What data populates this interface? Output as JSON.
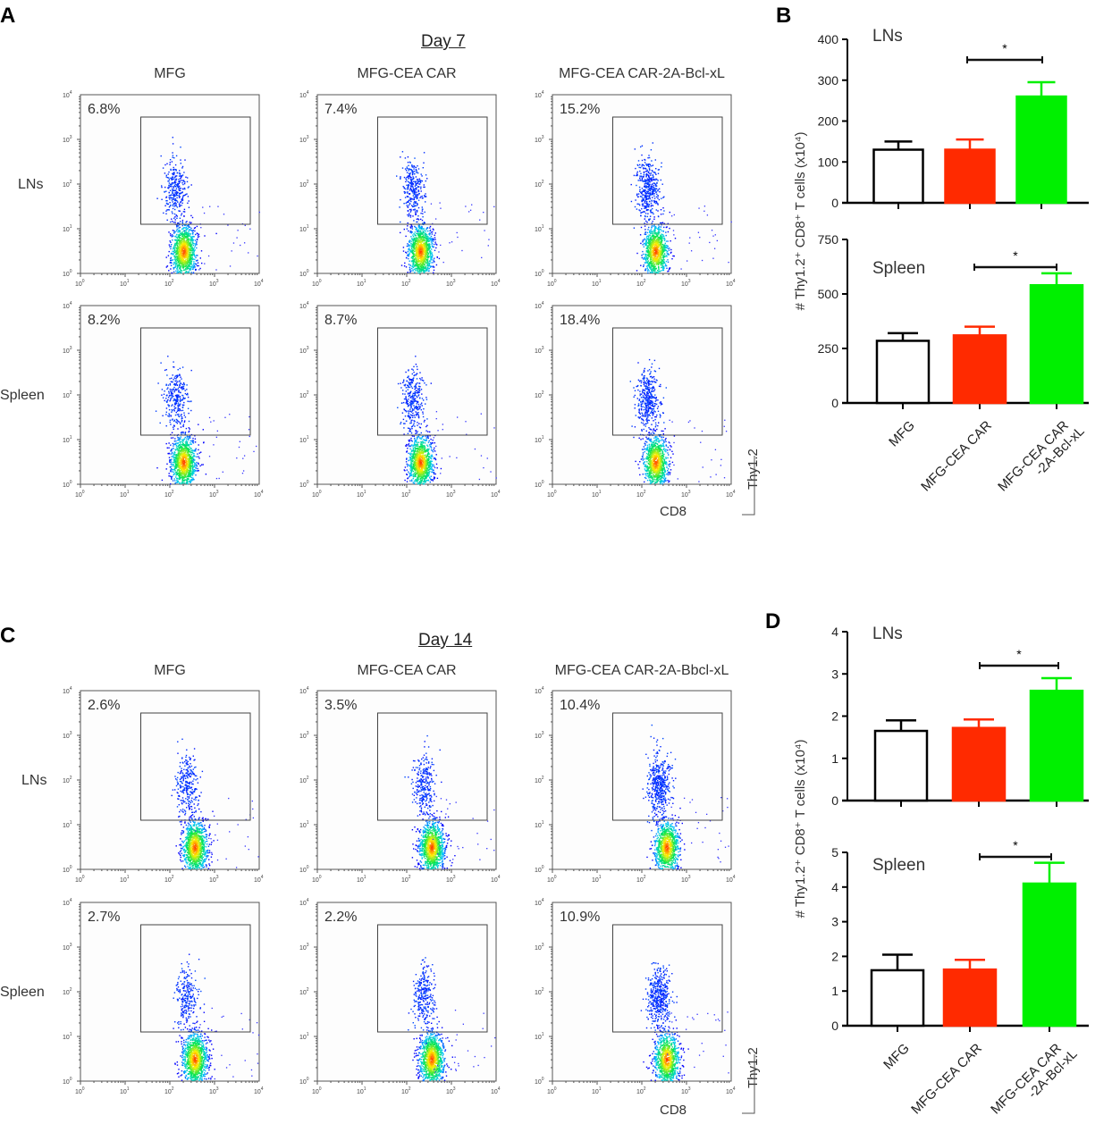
{
  "panels": {
    "A": {
      "label": "A",
      "title": "Day 7",
      "columns": [
        "MFG",
        "MFG-CEA CAR",
        "MFG-CEA CAR-2A-Bcl-xL"
      ],
      "rows": [
        "LNs",
        "Spleen"
      ],
      "percents": [
        [
          "6.8%",
          "7.4%",
          "15.2%"
        ],
        [
          "8.2%",
          "8.7%",
          "18.4%"
        ]
      ],
      "x_axis": "CD8",
      "y_axis": "Thy1.2"
    },
    "C": {
      "label": "C",
      "title": "Day 14",
      "columns": [
        "MFG",
        "MFG-CEA CAR",
        "MFG-CEA CAR-2A-Bbcl-xL"
      ],
      "rows": [
        "LNs",
        "Spleen"
      ],
      "percents": [
        [
          "2.6%",
          "3.5%",
          "10.4%"
        ],
        [
          "2.7%",
          "2.2%",
          "10.9%"
        ]
      ],
      "x_axis": "CD8",
      "y_axis": "Thy1.2"
    },
    "B": {
      "label": "B"
    },
    "D": {
      "label": "D"
    }
  },
  "flow_tick_labels": [
    "10^0",
    "10^1",
    "10^2",
    "10^3",
    "10^4"
  ],
  "colors": {
    "MFG": "#ffffff",
    "MFG-CEA CAR": "#ff2a00",
    "MFG-CEA CAR-2A-Bcl-xL": "#00f000"
  },
  "chart_data": [
    {
      "id": "B",
      "type": "bar",
      "ylabel": "# Thy1.2+ CD8+ T cells (x10^4)",
      "categories": [
        "MFG",
        "MFG-CEA CAR",
        "MFG-CEA CAR -2A-Bcl-xL"
      ],
      "subplots": [
        {
          "title": "LNs",
          "ylim": [
            0,
            400
          ],
          "yticks": [
            0,
            100,
            200,
            300,
            400
          ],
          "values": [
            130,
            130,
            260
          ],
          "errors": [
            20,
            25,
            35
          ],
          "significance": {
            "between": [
              1,
              2
            ],
            "label": "*"
          }
        },
        {
          "title": "Spleen",
          "ylim": [
            0,
            750
          ],
          "yticks": [
            0,
            250,
            500,
            750
          ],
          "values": [
            285,
            310,
            540
          ],
          "errors": [
            35,
            40,
            55
          ],
          "significance": {
            "between": [
              1,
              2
            ],
            "label": "*"
          }
        }
      ]
    },
    {
      "id": "D",
      "type": "bar",
      "ylabel": "# Thy1.2+ CD8+ T cells (x10^4)",
      "categories": [
        "MFG",
        "MFG-CEA CAR",
        "MFG-CEA CAR -2A-Bcl-xL"
      ],
      "subplots": [
        {
          "title": "LNs",
          "ylim": [
            0,
            4
          ],
          "yticks": [
            0,
            1,
            2,
            3,
            4
          ],
          "values": [
            1.65,
            1.72,
            2.6
          ],
          "errors": [
            0.25,
            0.2,
            0.3
          ],
          "significance": {
            "between": [
              1,
              2
            ],
            "label": "*"
          }
        },
        {
          "title": "Spleen",
          "ylim": [
            0,
            5
          ],
          "yticks": [
            0,
            1,
            2,
            3,
            4,
            5
          ],
          "values": [
            1.6,
            1.62,
            4.1
          ],
          "errors": [
            0.45,
            0.28,
            0.6
          ],
          "significance": {
            "between": [
              1,
              2
            ],
            "label": "*"
          }
        }
      ]
    }
  ]
}
